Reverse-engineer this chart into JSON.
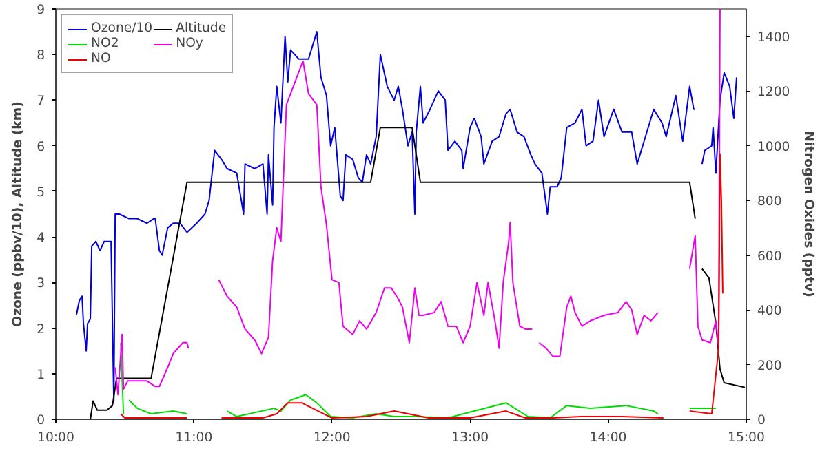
{
  "chart_data": {
    "type": "line",
    "ylabel": "Ozone (ppbv/10), Altitude (km)",
    "y2label": "Nitrogen Oxides (pptv)",
    "xlim": [
      10,
      15
    ],
    "xticks": [
      {
        "value": 10,
        "label": "10:00"
      },
      {
        "value": 11,
        "label": "11:00"
      },
      {
        "value": 12,
        "label": "12:00"
      },
      {
        "value": 13,
        "label": "13:00"
      },
      {
        "value": 14,
        "label": "14:00"
      },
      {
        "value": 15,
        "label": "15:00"
      }
    ],
    "ylim": [
      0,
      9
    ],
    "yticks": [
      0,
      1,
      2,
      3,
      4,
      5,
      6,
      7,
      8,
      9
    ],
    "y2lim": [
      0,
      1500
    ],
    "y2ticks": [
      0,
      200,
      400,
      600,
      800,
      1000,
      1200,
      1400
    ],
    "grid": false,
    "legend": "top left",
    "series": [
      {
        "name": "Ozone/10",
        "color": "#0000dd",
        "x": [
          10.15,
          10.17,
          10.19,
          10.2,
          10.22,
          10.23,
          10.25,
          10.26,
          10.29,
          10.32,
          10.35,
          10.38,
          10.4,
          10.42,
          10.43,
          10.46,
          10.53,
          10.59,
          10.66,
          10.71,
          10.72,
          10.75,
          10.77,
          10.81,
          10.85,
          10.9,
          10.95,
          11.02,
          11.08,
          11.11,
          11.15,
          11.2,
          11.24,
          11.31,
          11.36,
          11.37,
          11.44,
          11.5,
          11.53,
          11.54,
          11.57,
          11.58,
          11.6,
          11.63,
          11.66,
          11.68,
          11.7,
          11.76,
          11.83,
          11.86,
          11.89,
          11.92,
          11.96,
          11.99,
          12.02,
          12.06,
          12.08,
          12.1,
          12.15,
          12.19,
          12.22,
          12.25,
          12.28,
          12.32,
          12.35,
          12.4,
          12.45,
          12.48,
          12.51,
          12.55,
          12.58,
          12.6,
          12.61,
          12.64,
          12.66,
          12.71,
          12.77,
          12.82,
          12.84,
          12.89,
          12.94,
          12.95,
          13.0,
          13.03,
          13.08,
          13.1,
          13.16,
          13.21,
          13.26,
          13.29,
          13.34,
          13.39,
          13.44,
          13.47,
          13.52,
          13.56,
          13.58,
          13.63,
          13.66,
          13.7,
          13.76,
          13.81,
          13.84,
          13.89,
          13.93,
          13.97,
          14.04,
          14.1,
          14.17,
          14.21,
          14.26,
          14.33,
          14.39,
          14.42,
          14.49,
          14.54,
          14.59,
          14.62,
          14.63,
          14.65,
          14.68,
          14.7,
          14.75,
          14.76,
          14.78,
          14.81,
          14.84,
          14.88,
          14.91,
          14.93
        ],
        "values": [
          2.3,
          2.6,
          2.7,
          2.1,
          1.5,
          2.1,
          2.2,
          3.8,
          3.9,
          3.7,
          3.9,
          3.9,
          3.9,
          0.4,
          4.5,
          4.5,
          4.4,
          4.4,
          4.3,
          4.4,
          4.4,
          3.7,
          3.6,
          4.2,
          4.3,
          4.3,
          4.1,
          4.3,
          4.5,
          4.8,
          5.9,
          5.7,
          5.5,
          5.4,
          4.5,
          5.6,
          5.5,
          5.6,
          4.5,
          5.8,
          4.7,
          6.4,
          7.3,
          6.5,
          8.4,
          7.4,
          8.1,
          7.9,
          7.9,
          8.2,
          8.5,
          7.5,
          7.1,
          6.0,
          6.4,
          4.9,
          4.8,
          5.8,
          5.7,
          5.3,
          5.2,
          5.8,
          5.6,
          6.2,
          8.0,
          7.3,
          7.0,
          7.3,
          6.8,
          6.0,
          6.3,
          4.5,
          6.3,
          7.3,
          6.5,
          6.8,
          7.2,
          7.0,
          5.9,
          6.1,
          5.9,
          5.5,
          6.4,
          6.6,
          6.2,
          5.6,
          6.1,
          6.2,
          6.7,
          6.8,
          6.3,
          6.2,
          5.8,
          5.6,
          5.4,
          4.5,
          5.1,
          5.1,
          5.3,
          6.4,
          6.5,
          6.8,
          6.0,
          6.1,
          7.0,
          6.2,
          6.8,
          6.3,
          6.3,
          5.6,
          6.1,
          6.8,
          6.5,
          6.2,
          7.1,
          6.1,
          7.3,
          6.8,
          6.8,
          null,
          5.6,
          5.9,
          6.0,
          6.4,
          5.4,
          7.0,
          7.6,
          7.3,
          6.6,
          7.5
        ]
      },
      {
        "name": "Altitude",
        "color": "#000000",
        "x": [
          10.0,
          10.25,
          10.27,
          10.3,
          10.37,
          10.41,
          10.44,
          10.69,
          10.95,
          12.28,
          12.35,
          12.58,
          12.64,
          14.59,
          14.63,
          14.65,
          14.68,
          14.73,
          14.78,
          14.81,
          14.84,
          14.99
        ],
        "values": [
          0.0,
          0.0,
          0.4,
          0.2,
          0.2,
          0.3,
          0.9,
          0.9,
          5.2,
          5.2,
          6.4,
          6.4,
          5.2,
          5.2,
          4.4,
          null,
          3.3,
          3.1,
          2.1,
          1.1,
          0.8,
          0.7
        ]
      },
      {
        "name": "NO2",
        "color": "#00dd00",
        "axis": "y2",
        "x": [
          10.47,
          10.49,
          10.51,
          10.53,
          10.59,
          10.69,
          10.85,
          10.95,
          10.97,
          11.24,
          11.31,
          11.58,
          11.63,
          11.7,
          11.81,
          11.89,
          11.99,
          12.15,
          12.32,
          12.45,
          12.6,
          12.84,
          13.03,
          13.26,
          13.42,
          13.58,
          13.7,
          13.87,
          14.13,
          14.33,
          14.36,
          14.45,
          14.59,
          14.78
        ],
        "values": [
          280,
          20,
          null,
          70,
          40,
          20,
          30,
          20,
          null,
          30,
          10,
          40,
          30,
          70,
          90,
          60,
          10,
          5,
          20,
          10,
          10,
          5,
          30,
          60,
          10,
          5,
          50,
          40,
          50,
          30,
          20,
          null,
          40,
          40
        ]
      },
      {
        "name": "NOy",
        "color": "#ee00ee",
        "axis": "y2",
        "x": [
          10.43,
          10.45,
          10.48,
          10.49,
          10.52,
          10.56,
          10.66,
          10.72,
          10.75,
          10.81,
          10.85,
          10.92,
          10.95,
          10.96,
          11.0,
          11.18,
          11.24,
          11.31,
          11.37,
          11.44,
          11.49,
          11.54,
          11.57,
          11.6,
          11.63,
          11.67,
          11.7,
          11.76,
          11.79,
          11.83,
          11.89,
          11.92,
          11.96,
          12.0,
          12.05,
          12.08,
          12.15,
          12.2,
          12.25,
          12.32,
          12.38,
          12.43,
          12.48,
          12.51,
          12.56,
          12.6,
          12.63,
          12.66,
          12.74,
          12.79,
          12.84,
          12.9,
          12.95,
          13.0,
          13.05,
          13.1,
          13.13,
          13.18,
          13.21,
          13.24,
          13.28,
          13.29,
          13.31,
          13.36,
          13.4,
          13.45,
          13.48,
          13.5,
          13.55,
          13.6,
          13.65,
          13.7,
          13.73,
          13.76,
          13.81,
          13.87,
          13.97,
          14.07,
          14.13,
          14.17,
          14.21,
          14.26,
          14.31,
          14.36,
          14.45,
          14.59,
          14.63,
          14.65,
          14.68,
          14.74,
          14.78,
          14.8,
          14.81
        ],
        "values": [
          190,
          90,
          310,
          110,
          140,
          140,
          140,
          120,
          120,
          190,
          240,
          280,
          280,
          260,
          null,
          510,
          450,
          410,
          330,
          290,
          240,
          300,
          580,
          700,
          650,
          1150,
          1190,
          1270,
          1310,
          1190,
          1150,
          850,
          710,
          510,
          500,
          340,
          310,
          360,
          330,
          390,
          480,
          480,
          440,
          410,
          280,
          480,
          380,
          380,
          390,
          430,
          340,
          340,
          280,
          340,
          500,
          380,
          500,
          360,
          260,
          500,
          650,
          720,
          500,
          340,
          330,
          330,
          null,
          280,
          260,
          230,
          230,
          410,
          450,
          390,
          340,
          360,
          380,
          390,
          430,
          400,
          310,
          380,
          360,
          390,
          null,
          550,
          670,
          340,
          290,
          280,
          360,
          260,
          1500
        ]
      },
      {
        "name": "NO",
        "color": "#ee0000",
        "axis": "y2",
        "x": [
          10.47,
          10.5,
          10.6,
          10.8,
          10.95,
          10.97,
          11.2,
          11.5,
          11.6,
          11.68,
          11.78,
          11.9,
          12.0,
          12.25,
          12.45,
          12.7,
          13.0,
          13.26,
          13.4,
          13.6,
          13.8,
          14.1,
          14.4,
          14.45,
          14.59,
          14.75,
          14.8,
          14.81,
          14.82,
          14.83
        ],
        "values": [
          20,
          5,
          5,
          5,
          5,
          null,
          5,
          5,
          20,
          60,
          60,
          30,
          5,
          10,
          30,
          5,
          5,
          30,
          5,
          5,
          10,
          10,
          5,
          null,
          30,
          20,
          260,
          970,
          800,
          460
        ]
      }
    ]
  }
}
